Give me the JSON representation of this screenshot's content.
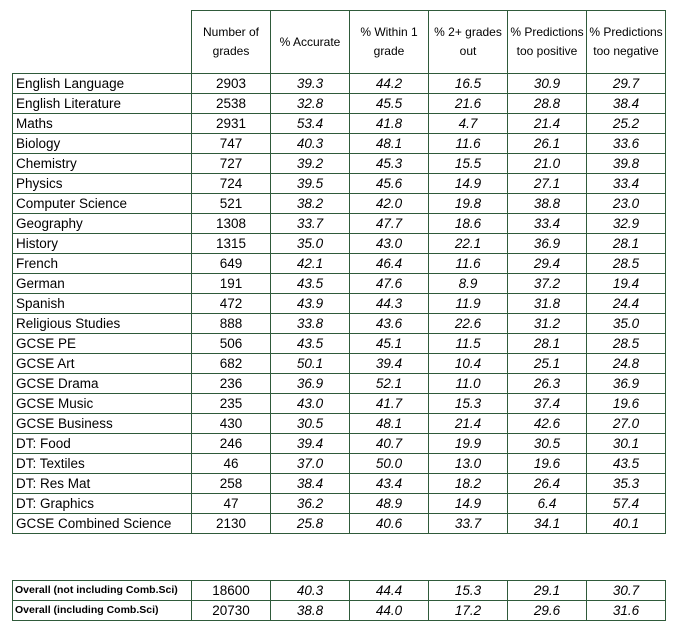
{
  "headers": {
    "subject": "",
    "num_grades": "Number of grades",
    "accurate": "% Accurate",
    "within1": "% Within 1 grade",
    "two_plus": "% 2+ grades out",
    "too_positive": "% Predictions too positive",
    "too_negative": "% Predictions too negative"
  },
  "rows": [
    {
      "subject": "English Language",
      "n": "2903",
      "acc": "39.3",
      "w1": "44.2",
      "out2": "16.5",
      "pos": "30.9",
      "neg": "29.7"
    },
    {
      "subject": "English Literature",
      "n": "2538",
      "acc": "32.8",
      "w1": "45.5",
      "out2": "21.6",
      "pos": "28.8",
      "neg": "38.4"
    },
    {
      "subject": "Maths",
      "n": "2931",
      "acc": "53.4",
      "w1": "41.8",
      "out2": "4.7",
      "pos": "21.4",
      "neg": "25.2"
    },
    {
      "subject": "Biology",
      "n": "747",
      "acc": "40.3",
      "w1": "48.1",
      "out2": "11.6",
      "pos": "26.1",
      "neg": "33.6"
    },
    {
      "subject": "Chemistry",
      "n": "727",
      "acc": "39.2",
      "w1": "45.3",
      "out2": "15.5",
      "pos": "21.0",
      "neg": "39.8"
    },
    {
      "subject": "Physics",
      "n": "724",
      "acc": "39.5",
      "w1": "45.6",
      "out2": "14.9",
      "pos": "27.1",
      "neg": "33.4"
    },
    {
      "subject": "Computer Science",
      "n": "521",
      "acc": "38.2",
      "w1": "42.0",
      "out2": "19.8",
      "pos": "38.8",
      "neg": "23.0"
    },
    {
      "subject": "Geography",
      "n": "1308",
      "acc": "33.7",
      "w1": "47.7",
      "out2": "18.6",
      "pos": "33.4",
      "neg": "32.9"
    },
    {
      "subject": "History",
      "n": "1315",
      "acc": "35.0",
      "w1": "43.0",
      "out2": "22.1",
      "pos": "36.9",
      "neg": "28.1"
    },
    {
      "subject": "French",
      "n": "649",
      "acc": "42.1",
      "w1": "46.4",
      "out2": "11.6",
      "pos": "29.4",
      "neg": "28.5"
    },
    {
      "subject": "German",
      "n": "191",
      "acc": "43.5",
      "w1": "47.6",
      "out2": "8.9",
      "pos": "37.2",
      "neg": "19.4"
    },
    {
      "subject": "Spanish",
      "n": "472",
      "acc": "43.9",
      "w1": "44.3",
      "out2": "11.9",
      "pos": "31.8",
      "neg": "24.4"
    },
    {
      "subject": "Religious Studies",
      "n": "888",
      "acc": "33.8",
      "w1": "43.6",
      "out2": "22.6",
      "pos": "31.2",
      "neg": "35.0"
    },
    {
      "subject": "GCSE PE",
      "n": "506",
      "acc": "43.5",
      "w1": "45.1",
      "out2": "11.5",
      "pos": "28.1",
      "neg": "28.5"
    },
    {
      "subject": "GCSE Art",
      "n": "682",
      "acc": "50.1",
      "w1": "39.4",
      "out2": "10.4",
      "pos": "25.1",
      "neg": "24.8"
    },
    {
      "subject": "GCSE Drama",
      "n": "236",
      "acc": "36.9",
      "w1": "52.1",
      "out2": "11.0",
      "pos": "26.3",
      "neg": "36.9"
    },
    {
      "subject": "GCSE Music",
      "n": "235",
      "acc": "43.0",
      "w1": "41.7",
      "out2": "15.3",
      "pos": "37.4",
      "neg": "19.6"
    },
    {
      "subject": "GCSE Business",
      "n": "430",
      "acc": "30.5",
      "w1": "48.1",
      "out2": "21.4",
      "pos": "42.6",
      "neg": "27.0"
    },
    {
      "subject": "DT: Food",
      "n": "246",
      "acc": "39.4",
      "w1": "40.7",
      "out2": "19.9",
      "pos": "30.5",
      "neg": "30.1"
    },
    {
      "subject": "DT: Textiles",
      "n": "46",
      "acc": "37.0",
      "w1": "50.0",
      "out2": "13.0",
      "pos": "19.6",
      "neg": "43.5"
    },
    {
      "subject": "DT: Res Mat",
      "n": "258",
      "acc": "38.4",
      "w1": "43.4",
      "out2": "18.2",
      "pos": "26.4",
      "neg": "35.3"
    },
    {
      "subject": "DT: Graphics",
      "n": "47",
      "acc": "36.2",
      "w1": "48.9",
      "out2": "14.9",
      "pos": "6.4",
      "neg": "57.4"
    },
    {
      "subject": "GCSE Combined Science",
      "n": "2130",
      "acc": "25.8",
      "w1": "40.6",
      "out2": "33.7",
      "pos": "34.1",
      "neg": "40.1"
    }
  ],
  "overall": [
    {
      "subject": "Overall (not including Comb.Sci)",
      "n": "18600",
      "acc": "40.3",
      "w1": "44.4",
      "out2": "15.3",
      "pos": "29.1",
      "neg": "30.7"
    },
    {
      "subject": "Overall (including Comb.Sci)",
      "n": "20730",
      "acc": "38.8",
      "w1": "44.0",
      "out2": "17.2",
      "pos": "29.6",
      "neg": "31.6"
    }
  ]
}
